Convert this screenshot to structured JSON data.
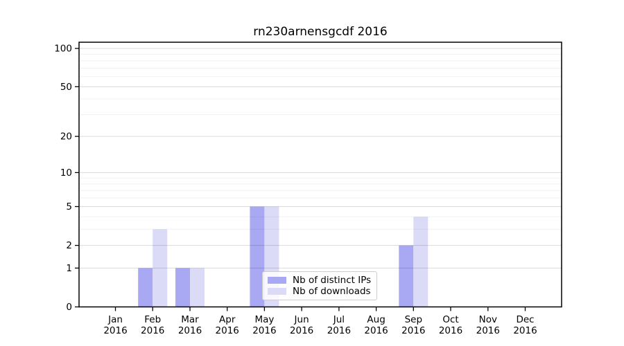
{
  "title": "rn230arnensgcdf 2016",
  "chart_data": {
    "type": "bar",
    "title": "rn230arnensgcdf 2016",
    "categories": [
      "Jan",
      "Feb",
      "Mar",
      "Apr",
      "May",
      "Jun",
      "Jul",
      "Aug",
      "Sep",
      "Oct",
      "Nov",
      "Dec"
    ],
    "category_year": "2016",
    "series": [
      {
        "name": "Nb of distinct IPs",
        "color": "#a9a9f3",
        "values": [
          0,
          1,
          1,
          0,
          5,
          0,
          0,
          0,
          2,
          0,
          0,
          0
        ]
      },
      {
        "name": "Nb of downloads",
        "color": "#dbdbf8",
        "values": [
          0,
          3,
          1,
          0,
          5,
          0,
          0,
          0,
          4,
          0,
          0,
          0
        ]
      }
    ],
    "y_scale": "log1p",
    "y_ticks": [
      0,
      1,
      2,
      5,
      10,
      20,
      50,
      100
    ],
    "y_minor_ticks": [
      3,
      4,
      6,
      7,
      8,
      9,
      30,
      40,
      60,
      70,
      80,
      90
    ],
    "ylim_top_value": 110,
    "grid": true,
    "grid_major_color": "rgba(0,0,0,0.15)",
    "grid_minor_color": "rgba(0,0,0,0.06)",
    "axis_color": "#000000",
    "legend_position": "lower center"
  }
}
